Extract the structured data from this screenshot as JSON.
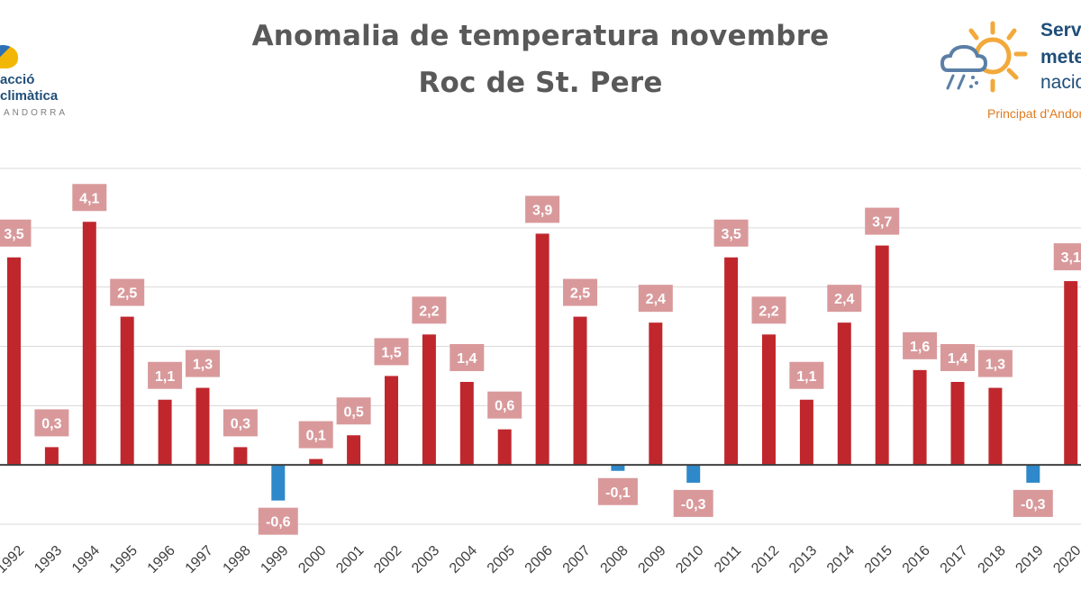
{
  "title": {
    "line1": "Anomalia de temperatura novembre",
    "line2": "Roc de St. Pere"
  },
  "logo_left": {
    "line1": "acció",
    "line2": "climàtica",
    "line3": "ANDORRA"
  },
  "logo_right": {
    "line1": "Servei",
    "line2": "meteorològic",
    "line3": "nacional",
    "line4": "Principat d'Andorra"
  },
  "colors": {
    "positive_bar": "#c0272d",
    "negative_bar": "#2e88c9",
    "label_box": "#d9999b",
    "label_text": "#ffffff",
    "title_text": "#595959",
    "gridline": "#d9d9d9",
    "axis": "#404040"
  },
  "chart_data": {
    "type": "bar",
    "title": "Anomalia de temperatura novembre",
    "subtitle": "Roc de St. Pere",
    "xlabel": "",
    "ylabel": "",
    "ylim": [
      -1,
      5
    ],
    "grid": true,
    "legend": "none",
    "categories": [
      "1992",
      "1993",
      "1994",
      "1995",
      "1996",
      "1997",
      "1998",
      "1999",
      "2000",
      "2001",
      "2002",
      "2003",
      "2004",
      "2005",
      "2006",
      "2007",
      "2008",
      "2009",
      "2010",
      "2011",
      "2012",
      "2013",
      "2014",
      "2015",
      "2016",
      "2017",
      "2018",
      "2019",
      "2020"
    ],
    "values": [
      3.5,
      0.3,
      4.1,
      2.5,
      1.1,
      1.3,
      0.3,
      -0.6,
      0.1,
      0.5,
      1.5,
      2.2,
      1.4,
      0.6,
      3.9,
      2.5,
      -0.1,
      2.4,
      -0.3,
      3.5,
      2.2,
      1.1,
      2.4,
      3.7,
      1.6,
      1.4,
      1.3,
      -0.3,
      3.1
    ],
    "data_labels": [
      "3,5",
      "0,3",
      "4,1",
      "2,5",
      "1,1",
      "1,3",
      "0,3",
      "-0,6",
      "0,1",
      "0,5",
      "1,5",
      "2,2",
      "1,4",
      "0,6",
      "3,9",
      "2,5",
      "-0,1",
      "2,4",
      "-0,3",
      "3,5",
      "2,2",
      "1,1",
      "2,4",
      "3,7",
      "1,6",
      "1,4",
      "1,3",
      "-0,3",
      "3,1"
    ]
  }
}
